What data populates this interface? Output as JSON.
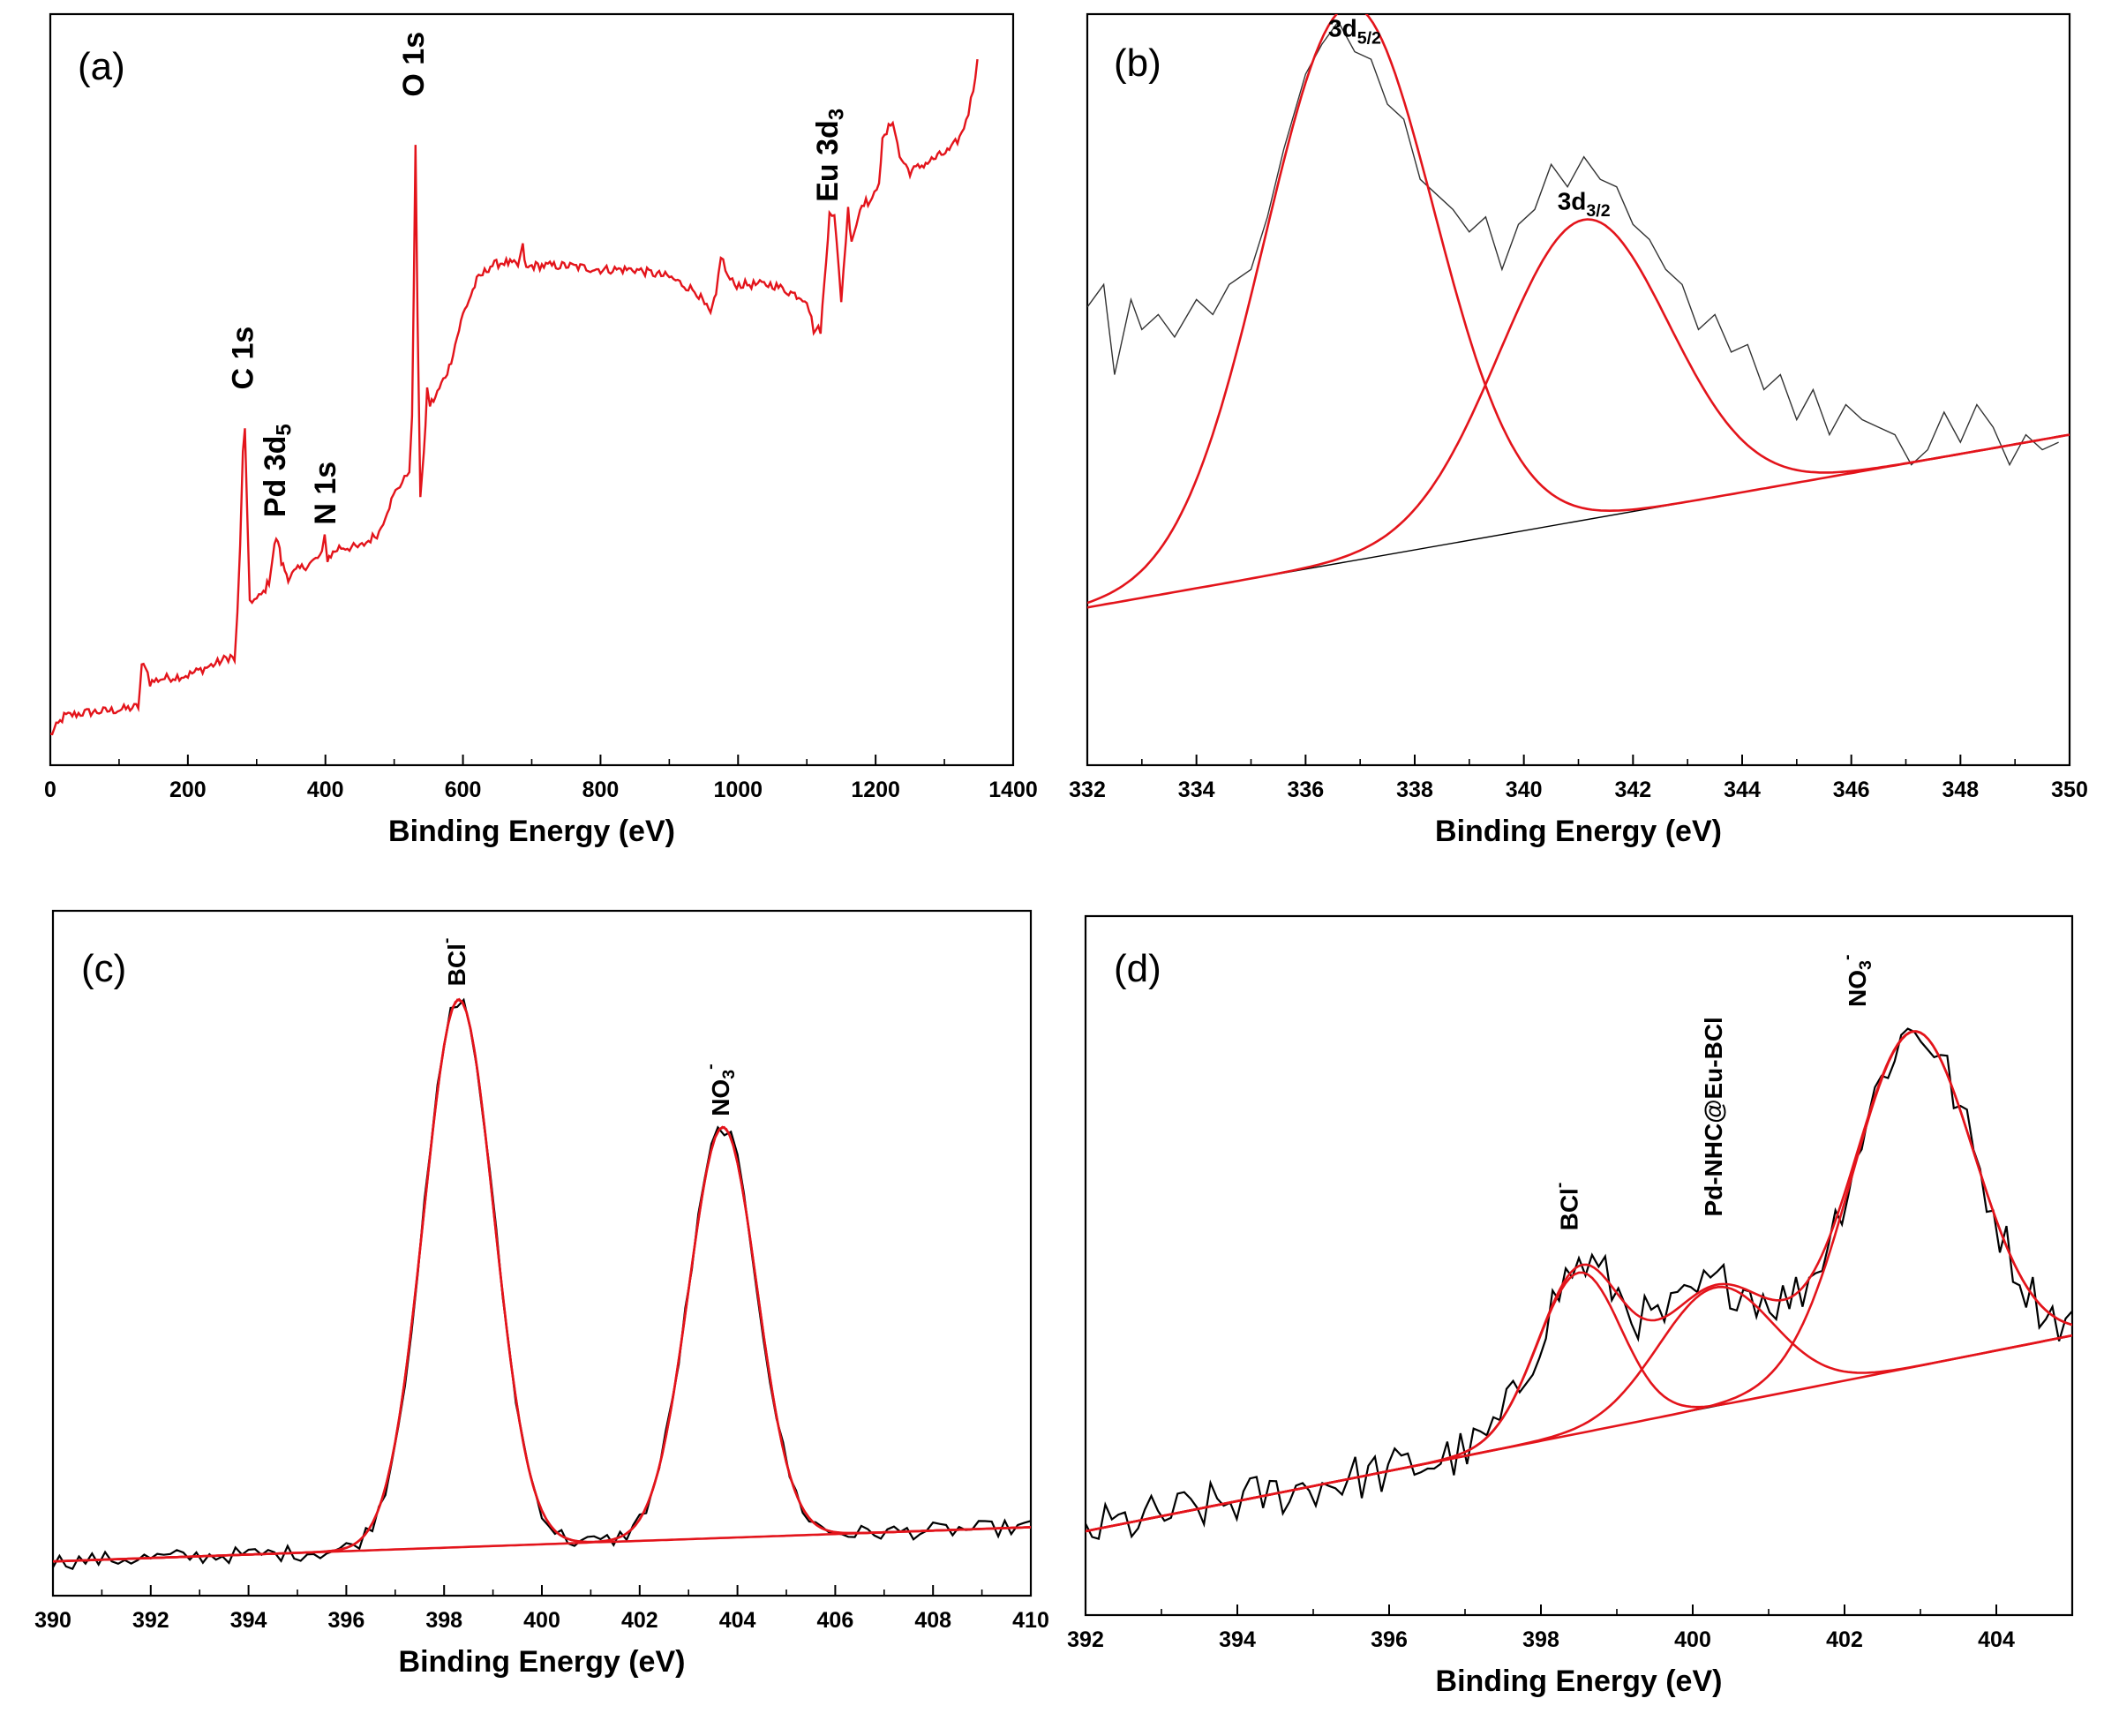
{
  "chart_data": [
    {
      "panel": "(a)",
      "type": "line",
      "xlabel": "Binding Energy (eV)",
      "ylabel": "",
      "xlim": [
        0,
        1400
      ],
      "xticks": [
        0,
        200,
        400,
        600,
        800,
        1000,
        1200,
        1400
      ],
      "y_axis_values_shown": false,
      "grid": false,
      "series": [
        {
          "color": "#e3141b",
          "x": [
            0,
            20,
            50,
            80,
            110,
            128,
            133,
            138,
            145,
            160,
            200,
            240,
            262,
            268,
            272,
            276,
            280,
            283,
            286,
            290,
            300,
            310,
            318,
            322,
            326,
            331,
            336,
            341,
            346,
            360,
            380,
            395,
            399,
            403,
            408,
            420,
            450,
            478,
            490,
            505,
            515,
            522,
            526,
            531,
            534,
            538,
            543,
            548,
            552,
            560,
            580,
            600,
            620,
            640,
            660,
            680,
            687,
            692,
            700,
            750,
            800,
            850,
            900,
            940,
            960,
            968,
            975,
            985,
            995,
            1050,
            1100,
            1110,
            1120,
            1128,
            1133,
            1140,
            1150,
            1160,
            1165,
            1172,
            1180,
            1195,
            1205,
            1210,
            1225,
            1235,
            1250,
            1270,
            1290,
            1310,
            1325,
            1335,
            1342,
            1348
          ],
          "y": [
            0.04,
            0.065,
            0.07,
            0.072,
            0.075,
            0.078,
            0.13,
            0.135,
            0.11,
            0.115,
            0.12,
            0.135,
            0.145,
            0.14,
            0.2,
            0.29,
            0.42,
            0.445,
            0.34,
            0.22,
            0.22,
            0.23,
            0.245,
            0.27,
            0.295,
            0.3,
            0.27,
            0.26,
            0.25,
            0.26,
            0.27,
            0.28,
            0.305,
            0.275,
            0.28,
            0.29,
            0.29,
            0.31,
            0.34,
            0.37,
            0.38,
            0.395,
            0.46,
            0.82,
            0.6,
            0.36,
            0.41,
            0.5,
            0.48,
            0.49,
            0.53,
            0.6,
            0.645,
            0.665,
            0.67,
            0.665,
            0.69,
            0.66,
            0.665,
            0.665,
            0.66,
            0.66,
            0.65,
            0.63,
            0.6,
            0.625,
            0.68,
            0.65,
            0.64,
            0.64,
            0.62,
            0.58,
            0.58,
            0.67,
            0.74,
            0.73,
            0.62,
            0.74,
            0.7,
            0.72,
            0.75,
            0.75,
            0.78,
            0.83,
            0.86,
            0.81,
            0.79,
            0.8,
            0.81,
            0.82,
            0.84,
            0.87,
            0.9,
            0.94
          ]
        }
      ],
      "annotations": [
        {
          "text": "C 1s",
          "x": 283,
          "y": 0.5,
          "rotation": -90
        },
        {
          "text": "Pd 3d",
          "sub": "5",
          "x": 330,
          "y": 0.33,
          "rotation": -90
        },
        {
          "text": "N 1s",
          "x": 403,
          "y": 0.32,
          "rotation": -90
        },
        {
          "text": "O 1s",
          "x": 531,
          "y": 0.89,
          "rotation": -90
        },
        {
          "text": "Eu 3d",
          "sub": "3",
          "x": 1133,
          "y": 0.75,
          "rotation": -90
        }
      ]
    },
    {
      "panel": "(b)",
      "type": "line",
      "xlabel": "Binding Energy (eV)",
      "ylabel": "",
      "xlim": [
        332,
        350
      ],
      "xticks": [
        332,
        334,
        336,
        338,
        340,
        342,
        344,
        346,
        348,
        350
      ],
      "y_axis_values_shown": false,
      "grid": false,
      "baseline": {
        "x": [
          332,
          350
        ],
        "y": [
          0.21,
          0.44
        ]
      },
      "series": [
        {
          "color": "#333333",
          "role": "raw-data",
          "x": [
            332,
            332.3,
            332.5,
            332.8,
            333,
            333.3,
            333.6,
            334,
            334.3,
            334.6,
            335,
            335.3,
            335.6,
            336,
            336.3,
            336.6,
            336.9,
            337.2,
            337.5,
            337.8,
            338.1,
            338.4,
            338.7,
            339,
            339.3,
            339.6,
            339.9,
            340.2,
            340.5,
            340.8,
            341.1,
            341.4,
            341.7,
            342,
            342.3,
            342.6,
            342.9,
            343.2,
            343.5,
            343.8,
            344.1,
            344.4,
            344.7,
            345,
            345.3,
            345.6,
            345.9,
            346.2,
            346.5,
            346.8,
            347.1,
            347.4,
            347.7,
            348,
            348.3,
            348.6,
            348.9,
            349.2,
            349.5,
            349.8
          ],
          "y": [
            0.61,
            0.64,
            0.52,
            0.62,
            0.58,
            0.6,
            0.57,
            0.62,
            0.6,
            0.64,
            0.66,
            0.73,
            0.82,
            0.92,
            0.96,
            0.99,
            0.95,
            0.94,
            0.88,
            0.86,
            0.78,
            0.76,
            0.74,
            0.71,
            0.73,
            0.66,
            0.72,
            0.74,
            0.8,
            0.77,
            0.81,
            0.78,
            0.77,
            0.72,
            0.7,
            0.66,
            0.64,
            0.58,
            0.6,
            0.55,
            0.56,
            0.5,
            0.52,
            0.46,
            0.5,
            0.44,
            0.48,
            0.46,
            0.45,
            0.44,
            0.4,
            0.42,
            0.47,
            0.43,
            0.48,
            0.45,
            0.4,
            0.44,
            0.42,
            0.43
          ]
        }
      ],
      "peaks": [
        {
          "center": 336.8,
          "height": 0.74,
          "sigma": 1.55
        },
        {
          "center": 341.1,
          "height": 0.4,
          "sigma": 1.55
        }
      ],
      "fit_color": "#e3141b",
      "annotations": [
        {
          "text": "3d",
          "sub": "5/2",
          "x": 336.9,
          "y": 0.97
        },
        {
          "text": "3d",
          "sub": "3/2",
          "x": 341.1,
          "y": 0.74
        }
      ]
    },
    {
      "panel": "(c)",
      "type": "line",
      "xlabel": "Binding Energy (eV)",
      "ylabel": "",
      "xlim": [
        390,
        410
      ],
      "xticks": [
        390,
        392,
        394,
        396,
        398,
        400,
        402,
        404,
        406,
        408,
        410
      ],
      "y_axis_values_shown": false,
      "grid": false,
      "baseline": {
        "x": [
          390,
          410
        ],
        "y": [
          0.05,
          0.1
        ]
      },
      "series": [
        {
          "color": "#000000",
          "role": "raw-data",
          "noise": 0.012
        }
      ],
      "peaks": [
        {
          "center": 398.3,
          "height": 0.8,
          "sigma": 0.72
        },
        {
          "center": 403.7,
          "height": 0.6,
          "sigma": 0.7
        }
      ],
      "fit_color": "#e3141b",
      "annotations": [
        {
          "text": "BCl",
          "sup": "-",
          "x": 398.3,
          "y": 0.89,
          "rotation": -90
        },
        {
          "text": "NO",
          "sub": "3",
          "sup": "-",
          "x": 403.7,
          "y": 0.7,
          "rotation": -90
        }
      ]
    },
    {
      "panel": "(d)",
      "type": "line",
      "xlabel": "Binding Energy (eV)",
      "ylabel": "",
      "xlim": [
        392,
        405
      ],
      "xticks": [
        392,
        394,
        396,
        398,
        400,
        402,
        404
      ],
      "y_axis_values_shown": false,
      "grid": false,
      "baseline": {
        "x": [
          392,
          405
        ],
        "y": [
          0.12,
          0.4
        ]
      },
      "series": [
        {
          "color": "#000000",
          "role": "raw-data",
          "noise": 0.035
        }
      ],
      "peaks": [
        {
          "center": 398.5,
          "height": 0.23,
          "sigma": 0.55
        },
        {
          "center": 400.3,
          "height": 0.17,
          "sigma": 0.75
        },
        {
          "center": 402.9,
          "height": 0.48,
          "sigma": 0.8
        }
      ],
      "fit_color": "#e3141b",
      "annotations": [
        {
          "text": "BCl",
          "sup": "-",
          "x": 398.4,
          "y": 0.55,
          "rotation": -90
        },
        {
          "text": "Pd-NHC@Eu-BCl",
          "x": 400.3,
          "y": 0.57,
          "rotation": -90
        },
        {
          "text": "NO",
          "sub": "3",
          "sup": "-",
          "x": 402.2,
          "y": 0.87,
          "rotation": -90
        }
      ]
    }
  ]
}
